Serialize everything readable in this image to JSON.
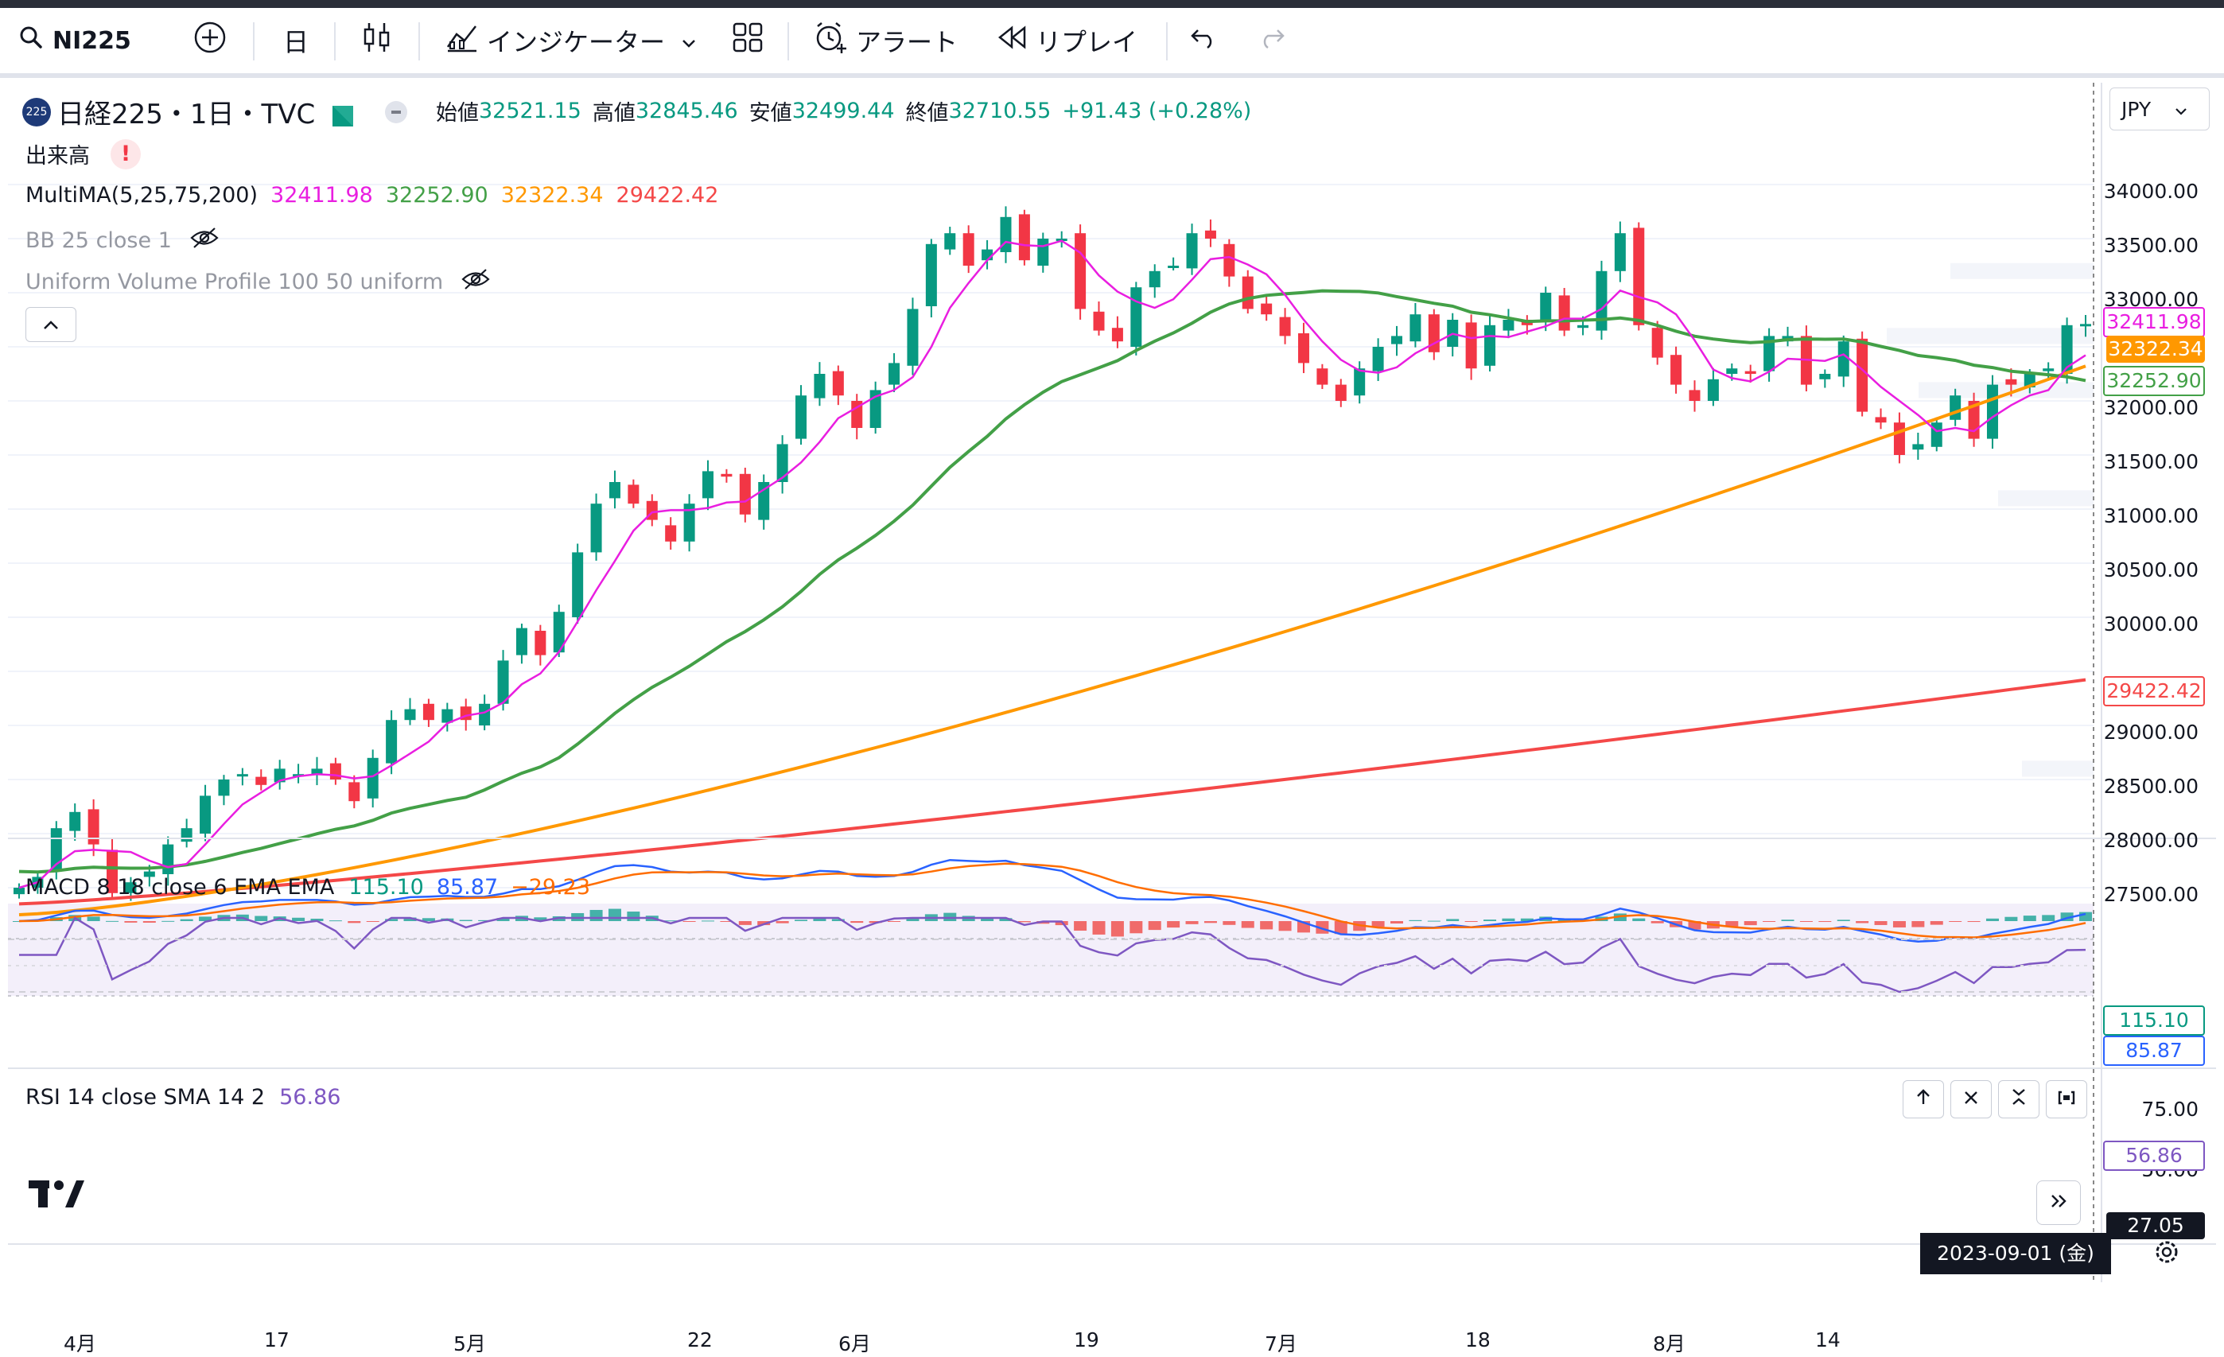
{
  "toolbar": {
    "symbol": "NI225",
    "interval": "日",
    "indicators_label": "インジケーター",
    "alert_label": "アラート",
    "replay_label": "リプレイ"
  },
  "legend": {
    "badge": "225",
    "title": "日経225・1日・TVC",
    "open_label": "始値",
    "open_value": "32521.15",
    "high_label": "高値",
    "high_value": "32845.46",
    "low_label": "安値",
    "low_value": "32499.44",
    "close_label": "終値",
    "close_value": "32710.55",
    "change": "+91.43 (+0.28%)",
    "volume_label": "出来高",
    "multima_label": "MultiMA(5,25,75,200)",
    "multima_values": [
      "32411.98",
      "32252.90",
      "32322.34",
      "29422.42"
    ],
    "bb_label": "BB 25 close 1",
    "uvp_label": "Uniform Volume Profile 100 50 uniform"
  },
  "currency": "JPY",
  "price_axis": [
    "34000.00",
    "33500.00",
    "33000.00",
    "32000.00",
    "31500.00",
    "31000.00",
    "30500.00",
    "30000.00",
    "29000.00",
    "28500.00",
    "28000.00",
    "27500.00"
  ],
  "price_tags": {
    "ma5": "32411.98",
    "ma75": "32322.34",
    "ma25": "32252.90",
    "ma200": "29422.42"
  },
  "macd": {
    "label": "MACD 8 18 close 6 EMA EMA",
    "v1": "115.10",
    "v2": "85.87",
    "v3": "−29.23",
    "tag1": "115.10",
    "tag2": "85.87"
  },
  "rsi": {
    "label": "RSI 14 close SMA 14 2",
    "value": "56.86",
    "axis_top": "75.00",
    "axis_mid": "50.00",
    "axis_bottom": "27.05",
    "tag": "56.86"
  },
  "time_axis": [
    "4月",
    "17",
    "5月",
    "22",
    "6月",
    "19",
    "7月",
    "18",
    "8月",
    "14"
  ],
  "crosshair_date": "2023-09-01 (金)",
  "colors": {
    "up": "#089981",
    "down": "#f23645",
    "ma5": "#e91ee0",
    "ma25": "#43a047",
    "ma75": "#ff9800",
    "ma200": "#f44848",
    "macd": "#2962ff",
    "signal": "#ff6d00",
    "rsi": "#7e57c2"
  },
  "chart_data": {
    "type": "candlestick",
    "ma_periods": [
      5,
      25,
      75,
      200
    ],
    "closes": [
      27500,
      27600,
      28050,
      28200,
      27900,
      27450,
      27550,
      27650,
      27900,
      28050,
      28350,
      28500,
      28550,
      28450,
      28600,
      28550,
      28600,
      28500,
      28300,
      28700,
      29050,
      29150,
      29050,
      29150,
      29050,
      29200,
      29600,
      29900,
      29650,
      30050,
      30600,
      31050,
      31250,
      31050,
      30900,
      30700,
      31050,
      31350,
      31300,
      30950,
      31250,
      31600,
      32050,
      32250,
      32050,
      31750,
      32100,
      32350,
      32850,
      33450,
      33550,
      33250,
      33400,
      33700,
      33300,
      33500,
      33500,
      32850,
      32650,
      32550,
      33050,
      33200,
      33250,
      33550,
      33500,
      33150,
      32850,
      32800,
      32600,
      32350,
      32150,
      32000,
      32300,
      32500,
      32600,
      32800,
      32450,
      32750,
      32300,
      32700,
      32750,
      32700,
      33000,
      32650,
      32700,
      33200,
      33550,
      32700,
      32400,
      32150,
      32000,
      32200,
      32300,
      32250,
      32600,
      32600,
      32150,
      32250,
      32550,
      31900,
      31800,
      31500,
      31600,
      31800,
      32050,
      31650,
      32150,
      32150,
      32250,
      32300,
      32700,
      32711
    ],
    "volume_present": true
  }
}
